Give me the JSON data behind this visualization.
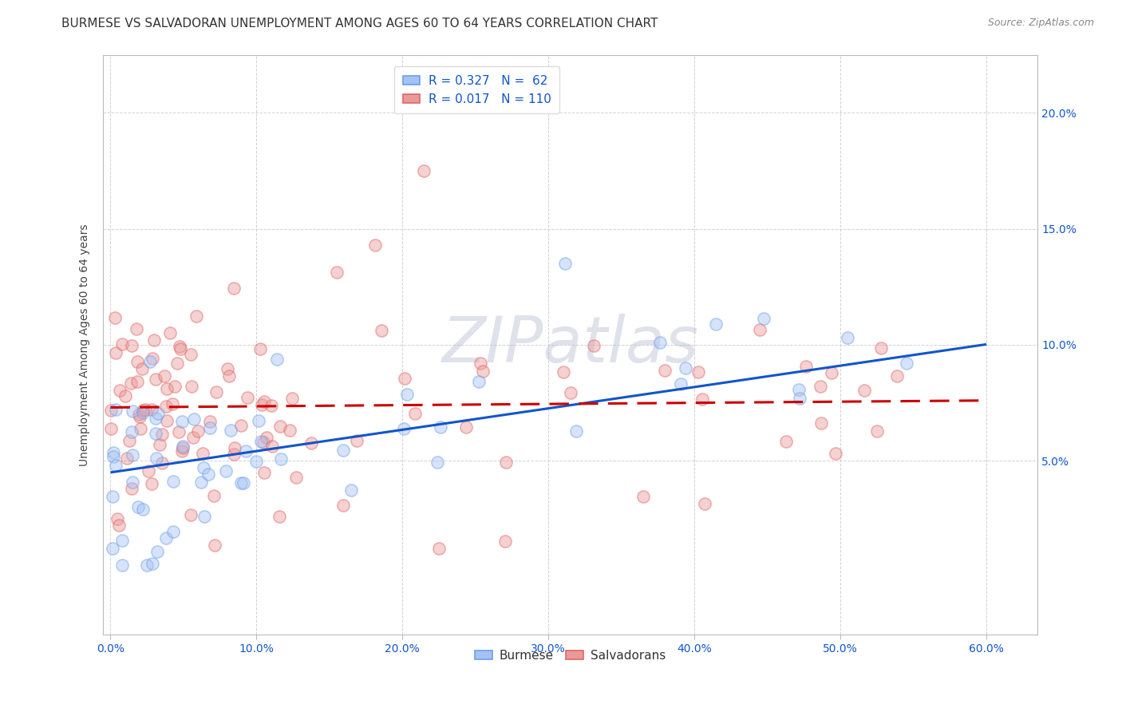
{
  "title": "BURMESE VS SALVADORAN UNEMPLOYMENT AMONG AGES 60 TO 64 YEARS CORRELATION CHART",
  "source": "Source: ZipAtlas.com",
  "ylabel": "Unemployment Among Ages 60 to 64 years",
  "xlabel_ticks": [
    "0.0%",
    "10.0%",
    "20.0%",
    "30.0%",
    "40.0%",
    "50.0%",
    "60.0%"
  ],
  "xlabel_vals": [
    0.0,
    0.1,
    0.2,
    0.3,
    0.4,
    0.5,
    0.6
  ],
  "ylabel_ticks": [
    "5.0%",
    "10.0%",
    "15.0%",
    "20.0%"
  ],
  "ylabel_vals": [
    0.05,
    0.1,
    0.15,
    0.2
  ],
  "xlim": [
    -0.005,
    0.635
  ],
  "ylim": [
    -0.025,
    0.225
  ],
  "burmese_color": "#a4c2f4",
  "salvadoran_color": "#ea9999",
  "burmese_edge_color": "#6d9eeb",
  "salvadoran_edge_color": "#e06666",
  "burmese_line_color": "#1155cc",
  "salvadoran_line_color": "#cc0000",
  "burmese_R": 0.327,
  "burmese_N": 62,
  "salvadoran_R": 0.017,
  "salvadoran_N": 110,
  "watermark": "ZIPatlas",
  "watermark_color": "#b0b8cc",
  "title_fontsize": 11,
  "source_fontsize": 9,
  "legend_fontsize": 11,
  "axis_label_fontsize": 10,
  "tick_fontsize": 10,
  "background_color": "#ffffff",
  "grid_color": "#cccccc"
}
